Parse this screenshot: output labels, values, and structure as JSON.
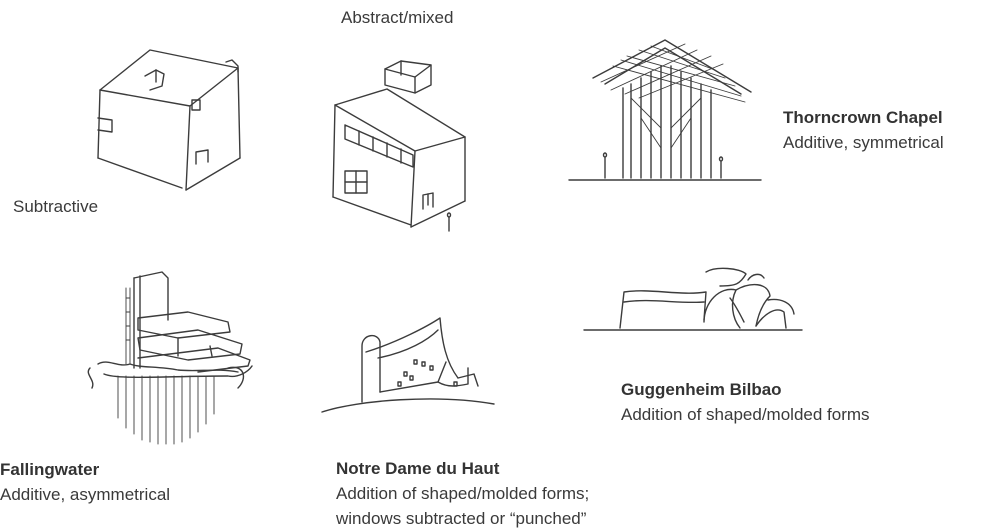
{
  "labels": {
    "abstract": "Abstract/mixed",
    "subtractive": "Subtractive"
  },
  "examples": [
    {
      "title": "Thorncrown Chapel",
      "desc": "Additive, symmetrical"
    },
    {
      "title": "Fallingwater",
      "desc": "Additive, asymmetrical"
    },
    {
      "title": "Notre Dame du Haut",
      "desc": "Addition of shaped/molded forms;",
      "desc2": "windows subtracted or “punched”"
    },
    {
      "title": "Guggenheim Bilbao",
      "desc": "Addition of shaped/molded forms"
    }
  ]
}
